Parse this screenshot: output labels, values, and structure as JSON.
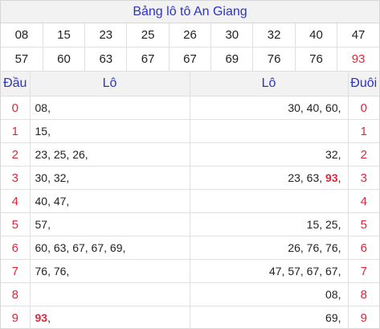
{
  "title": "Bảng lô tô An Giang",
  "numbers_row1": [
    "08",
    "15",
    "23",
    "25",
    "26",
    "30",
    "32",
    "40",
    "47"
  ],
  "numbers_row2": [
    "57",
    "60",
    "63",
    "67",
    "67",
    "69",
    "76",
    "76",
    "93"
  ],
  "highlight_color": "#e0263c",
  "accent_color": "#2b33c8",
  "headers": {
    "dau": "Đầu",
    "lo_left": "Lô",
    "lo_right": "Lô",
    "duoi": "Đuôi"
  },
  "rows": [
    {
      "dau": "0",
      "lo_left": "08,",
      "lo_right": "30, 40, 60,",
      "duoi": "0"
    },
    {
      "dau": "1",
      "lo_left": "15,",
      "lo_right": "",
      "duoi": "1"
    },
    {
      "dau": "2",
      "lo_left": "23, 25, 26,",
      "lo_right": "32,",
      "duoi": "2"
    },
    {
      "dau": "3",
      "lo_left": "30, 32,",
      "lo_right_pre": "23, 63, ",
      "lo_right_hl": "93",
      "lo_right_post": ",",
      "duoi": "3"
    },
    {
      "dau": "4",
      "lo_left": "40, 47,",
      "lo_right": "",
      "duoi": "4"
    },
    {
      "dau": "5",
      "lo_left": "57,",
      "lo_right": "15, 25,",
      "duoi": "5"
    },
    {
      "dau": "6",
      "lo_left": "60, 63, 67, 67, 69,",
      "lo_right": "26, 76, 76,",
      "duoi": "6"
    },
    {
      "dau": "7",
      "lo_left": "76, 76,",
      "lo_right": "47, 57, 67, 67,",
      "duoi": "7"
    },
    {
      "dau": "8",
      "lo_left": "",
      "lo_right": "08,",
      "duoi": "8"
    },
    {
      "dau": "9",
      "lo_left_hl": "93",
      "lo_left_post": ",",
      "lo_right": "69,",
      "duoi": "9"
    }
  ]
}
